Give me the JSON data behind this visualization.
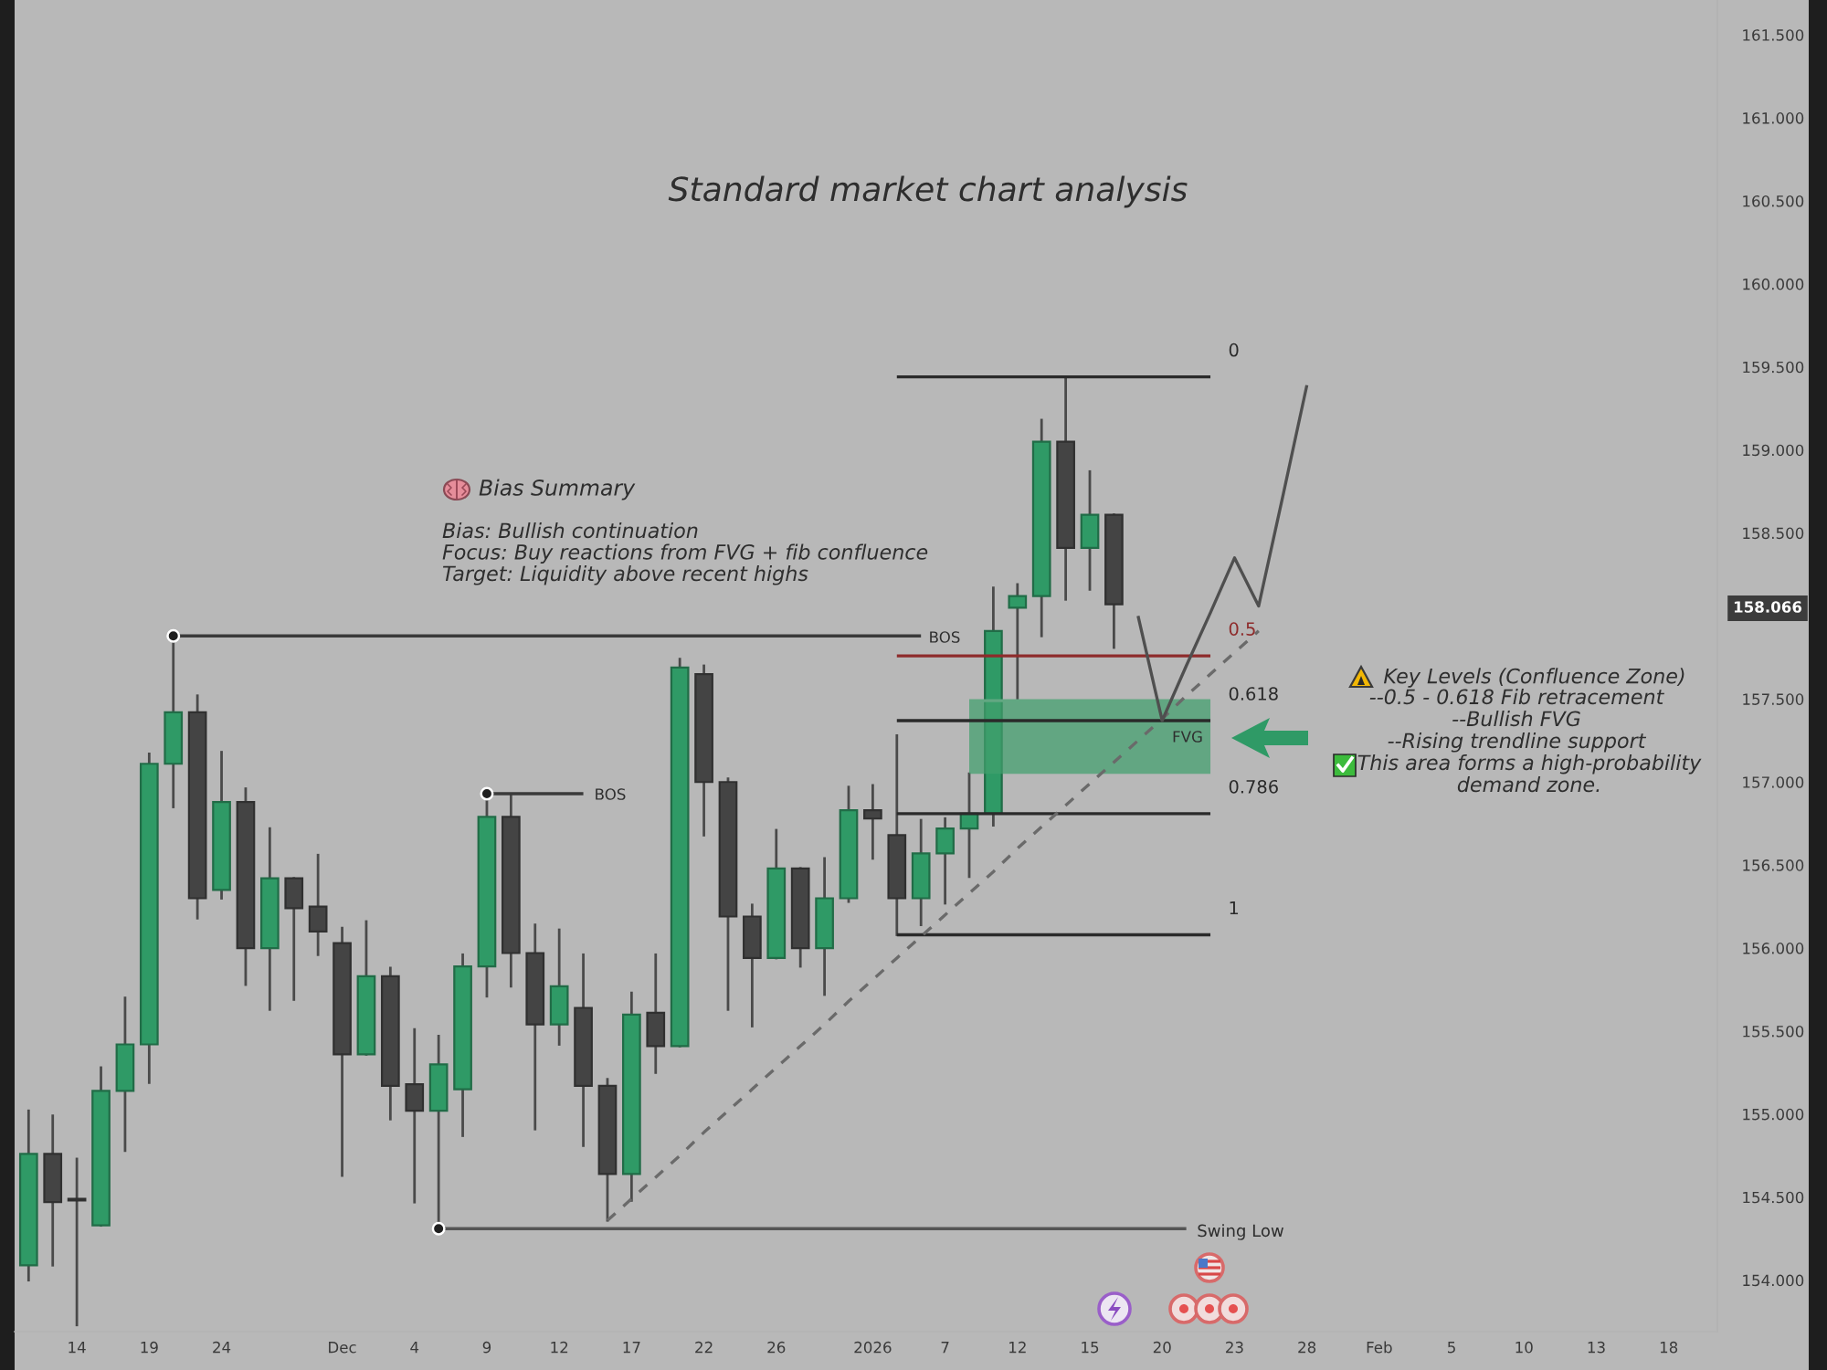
{
  "chart_data": {
    "type": "candlestick",
    "title": "Standard market chart analysis",
    "categories": [
      null,
      null,
      "14",
      null,
      null,
      "19",
      null,
      null,
      "24",
      null,
      null,
      null,
      null,
      "Dec",
      null,
      null,
      "4",
      null,
      null,
      "9",
      null,
      null,
      "12",
      null,
      null,
      "17",
      null,
      null,
      "22",
      null,
      null,
      "26",
      null,
      null,
      null,
      "2026",
      null,
      null,
      "7",
      null,
      null,
      "12",
      null,
      null,
      "15",
      null,
      null,
      "20",
      null,
      null,
      "23",
      null,
      null,
      "28",
      null,
      null,
      "Feb",
      null,
      null,
      "5",
      null,
      null,
      "10",
      null,
      null,
      "13",
      null,
      null,
      "18",
      null,
      null
    ],
    "ohlc": [
      [
        154.09,
        155.02,
        154.0,
        154.76
      ],
      [
        154.76,
        154.99,
        154.09,
        154.47
      ],
      [
        154.49,
        154.73,
        153.73,
        154.48
      ],
      [
        154.33,
        155.28,
        154.33,
        155.14
      ],
      [
        155.14,
        155.7,
        154.78,
        155.42
      ],
      [
        155.42,
        157.17,
        155.19,
        157.11
      ],
      [
        157.11,
        157.88,
        156.85,
        157.42
      ],
      [
        157.42,
        157.52,
        156.18,
        156.3
      ],
      [
        156.35,
        157.18,
        156.3,
        156.88
      ],
      [
        156.88,
        156.96,
        155.78,
        156.0
      ],
      [
        156.0,
        156.72,
        155.63,
        156.42
      ],
      [
        156.42,
        156.42,
        155.69,
        156.24
      ],
      [
        156.25,
        156.56,
        155.96,
        156.1
      ],
      [
        156.03,
        156.12,
        154.63,
        155.36
      ],
      [
        155.36,
        156.16,
        155.36,
        155.83
      ],
      [
        155.83,
        155.88,
        154.97,
        155.17
      ],
      [
        155.18,
        155.51,
        154.47,
        155.02
      ],
      [
        155.02,
        155.47,
        154.31,
        155.3
      ],
      [
        155.15,
        155.96,
        154.87,
        155.89
      ],
      [
        155.89,
        156.93,
        155.71,
        156.79
      ],
      [
        156.79,
        156.92,
        155.77,
        155.97
      ],
      [
        155.97,
        156.14,
        154.91,
        155.54
      ],
      [
        155.54,
        156.11,
        155.42,
        155.77
      ],
      [
        155.64,
        155.96,
        154.81,
        155.17
      ],
      [
        155.17,
        155.21,
        154.36,
        154.64
      ],
      [
        154.64,
        155.73,
        154.48,
        155.6
      ],
      [
        155.61,
        155.96,
        155.25,
        155.41
      ],
      [
        155.41,
        157.74,
        155.41,
        157.69
      ],
      [
        157.65,
        157.7,
        156.68,
        157.0
      ],
      [
        157.0,
        157.02,
        155.63,
        156.19
      ],
      [
        156.19,
        156.26,
        155.53,
        155.94
      ],
      [
        155.94,
        156.71,
        155.94,
        156.48
      ],
      [
        156.48,
        156.48,
        155.89,
        156.0
      ],
      [
        156.0,
        156.54,
        155.72,
        156.3
      ],
      [
        156.3,
        156.97,
        156.28,
        156.83
      ],
      [
        156.83,
        156.98,
        156.54,
        156.78
      ],
      [
        156.68,
        157.28,
        156.08,
        156.3
      ],
      [
        156.3,
        156.77,
        156.14,
        156.57
      ],
      [
        156.57,
        156.78,
        156.27,
        156.72
      ],
      [
        156.72,
        157.05,
        156.43,
        156.81
      ],
      [
        156.81,
        158.17,
        156.74,
        157.91
      ],
      [
        158.05,
        158.19,
        157.5,
        158.12
      ],
      [
        158.12,
        159.18,
        157.88,
        159.05
      ],
      [
        159.05,
        159.44,
        158.1,
        158.41
      ],
      [
        158.41,
        158.87,
        158.16,
        158.61
      ],
      [
        158.61,
        158.61,
        157.81,
        158.07
      ],
      null,
      null,
      null,
      null,
      null,
      null,
      null,
      null,
      null,
      null,
      null,
      null,
      null,
      null,
      null,
      null,
      null,
      null,
      null,
      null,
      null,
      null,
      null,
      null,
      null
    ],
    "colors": [
      "#2f9a66",
      "#444444",
      "#444444",
      "#2f9a66",
      "#2f9a66",
      "#2f9a66",
      "#2f9a66",
      "#444444",
      "#2f9a66",
      "#444444",
      "#2f9a66",
      "#444444",
      "#444444",
      "#444444",
      "#2f9a66",
      "#444444",
      "#444444",
      "#2f9a66",
      "#2f9a66",
      "#2f9a66",
      "#444444",
      "#444444",
      "#2f9a66",
      "#444444",
      "#444444",
      "#2f9a66",
      "#444444",
      "#2f9a66",
      "#444444",
      "#444444",
      "#444444",
      "#2f9a66",
      "#444444",
      "#2f9a66",
      "#2f9a66",
      "#444444",
      "#444444",
      "#2f9a66",
      "#2f9a66",
      "#2f9a66",
      "#2f9a66",
      "#2f9a66",
      "#2f9a66",
      "#444444",
      "#2f9a66",
      "#444444",
      null,
      null,
      null,
      null,
      null,
      null,
      null,
      null,
      null,
      null,
      null,
      null,
      null,
      null,
      null,
      null,
      null,
      null,
      null,
      null,
      null,
      null,
      null,
      null,
      null
    ],
    "series": [
      {
        "type": "line",
        "color": "#62a782",
        "values": [
          null,
          null,
          null,
          null,
          null,
          null,
          null,
          null,
          null,
          null,
          null,
          null,
          null,
          null,
          null,
          null,
          null,
          null,
          null,
          null,
          null,
          null,
          null,
          null,
          null,
          null,
          null,
          null,
          null,
          null,
          null,
          null,
          null,
          null,
          null,
          null,
          null,
          null,
          null,
          157.49,
          157.49,
          157.49,
          157.49,
          157.49,
          157.49,
          157.49,
          157.49,
          157.49,
          157.49,
          157.49,
          null,
          null,
          null,
          null,
          null,
          null,
          null,
          null,
          null,
          null,
          null,
          null,
          null,
          null,
          null,
          null,
          null,
          null,
          null,
          null,
          null
        ],
        "upper": [
          null,
          null,
          null,
          null,
          null,
          null,
          null,
          null,
          null,
          null,
          null,
          null,
          null,
          null,
          null,
          null,
          null,
          null,
          null,
          null,
          null,
          null,
          null,
          null,
          null,
          null,
          null,
          null,
          null,
          null,
          null,
          null,
          null,
          null,
          null,
          null,
          null,
          null,
          null,
          157.49,
          157.49,
          157.49,
          157.49,
          157.49,
          157.49,
          157.49,
          157.49,
          157.49,
          157.49,
          157.49,
          null,
          null,
          null,
          null,
          null,
          null,
          null,
          null,
          null,
          null,
          null,
          null,
          null,
          null,
          null,
          null,
          null,
          null,
          null,
          null,
          null
        ],
        "lower": [
          null,
          null,
          null,
          null,
          null,
          null,
          null,
          null,
          null,
          null,
          null,
          null,
          null,
          null,
          null,
          null,
          null,
          null,
          null,
          null,
          null,
          null,
          null,
          null,
          null,
          null,
          null,
          null,
          null,
          null,
          null,
          null,
          null,
          null,
          null,
          null,
          null,
          null,
          null,
          157.05,
          157.05,
          157.05,
          157.05,
          157.05,
          157.05,
          157.05,
          157.05,
          157.05,
          157.05,
          157.05,
          null,
          null,
          null,
          null,
          null,
          null,
          null,
          null,
          null,
          null,
          null,
          null,
          null,
          null,
          null,
          null,
          null,
          null,
          null,
          null,
          null
        ]
      },
      {
        "type": "line",
        "name": "0",
        "color": "#2a2a2a",
        "values": [
          null,
          null,
          null,
          null,
          null,
          null,
          null,
          null,
          null,
          null,
          null,
          null,
          null,
          null,
          null,
          null,
          null,
          null,
          null,
          null,
          null,
          null,
          null,
          null,
          null,
          null,
          null,
          null,
          null,
          null,
          null,
          null,
          null,
          null,
          null,
          null,
          159.44,
          159.44,
          159.44,
          159.44,
          159.44,
          159.44,
          159.44,
          159.44,
          159.44,
          159.44,
          159.44,
          159.44,
          159.44,
          159.44,
          null,
          null,
          null,
          null,
          null,
          null,
          null,
          null,
          null,
          null,
          null,
          null,
          null,
          null,
          null,
          null,
          null,
          null,
          null,
          null,
          null
        ]
      },
      {
        "type": "line",
        "name": "0.5",
        "color": "#8e2b2b",
        "values": [
          null,
          null,
          null,
          null,
          null,
          null,
          null,
          null,
          null,
          null,
          null,
          null,
          null,
          null,
          null,
          null,
          null,
          null,
          null,
          null,
          null,
          null,
          null,
          null,
          null,
          null,
          null,
          null,
          null,
          null,
          null,
          null,
          null,
          null,
          null,
          null,
          157.76,
          157.76,
          157.76,
          157.76,
          157.76,
          157.76,
          157.76,
          157.76,
          157.76,
          157.76,
          157.76,
          157.76,
          157.76,
          157.76,
          null,
          null,
          null,
          null,
          null,
          null,
          null,
          null,
          null,
          null,
          null,
          null,
          null,
          null,
          null,
          null,
          null,
          null,
          null,
          null,
          null
        ]
      },
      {
        "type": "line",
        "name": "0.618",
        "color": "#2a2a2a",
        "values": [
          null,
          null,
          null,
          null,
          null,
          null,
          null,
          null,
          null,
          null,
          null,
          null,
          null,
          null,
          null,
          null,
          null,
          null,
          null,
          null,
          null,
          null,
          null,
          null,
          null,
          null,
          null,
          null,
          null,
          null,
          null,
          null,
          null,
          null,
          null,
          null,
          157.37,
          157.37,
          157.37,
          157.37,
          157.37,
          157.37,
          157.37,
          157.37,
          157.37,
          157.37,
          157.37,
          157.37,
          157.37,
          157.37,
          null,
          null,
          null,
          null,
          null,
          null,
          null,
          null,
          null,
          null,
          null,
          null,
          null,
          null,
          null,
          null,
          null,
          null,
          null,
          null,
          null
        ]
      },
      {
        "type": "line",
        "name": "0.786",
        "color": "#2a2a2a",
        "values": [
          null,
          null,
          null,
          null,
          null,
          null,
          null,
          null,
          null,
          null,
          null,
          null,
          null,
          null,
          null,
          null,
          null,
          null,
          null,
          null,
          null,
          null,
          null,
          null,
          null,
          null,
          null,
          null,
          null,
          null,
          null,
          null,
          null,
          null,
          null,
          null,
          156.81,
          156.81,
          156.81,
          156.81,
          156.81,
          156.81,
          156.81,
          156.81,
          156.81,
          156.81,
          156.81,
          156.81,
          156.81,
          156.81,
          null,
          null,
          null,
          null,
          null,
          null,
          null,
          null,
          null,
          null,
          null,
          null,
          null,
          null,
          null,
          null,
          null,
          null,
          null,
          null,
          null
        ]
      },
      {
        "type": "line",
        "name": "1",
        "color": "#2a2a2a",
        "values": [
          null,
          null,
          null,
          null,
          null,
          null,
          null,
          null,
          null,
          null,
          null,
          null,
          null,
          null,
          null,
          null,
          null,
          null,
          null,
          null,
          null,
          null,
          null,
          null,
          null,
          null,
          null,
          null,
          null,
          null,
          null,
          null,
          null,
          null,
          null,
          null,
          156.08,
          156.08,
          156.08,
          156.08,
          156.08,
          156.08,
          156.08,
          156.08,
          156.08,
          156.08,
          156.08,
          156.08,
          156.08,
          156.08,
          null,
          null,
          null,
          null,
          null,
          null,
          null,
          null,
          null,
          null,
          null,
          null,
          null,
          null,
          null,
          null,
          null,
          null,
          null,
          null,
          null
        ]
      },
      {
        "type": "line",
        "color": "#3a3a3a",
        "values": [
          null,
          null,
          null,
          null,
          null,
          null,
          157.88,
          157.88,
          157.88,
          157.88,
          157.88,
          157.88,
          157.88,
          157.88,
          157.88,
          157.88,
          157.88,
          157.88,
          157.88,
          157.88,
          157.88,
          157.88,
          157.88,
          157.88,
          157.88,
          157.88,
          157.88,
          157.88,
          157.88,
          157.88,
          157.88,
          157.88,
          157.88,
          157.88,
          157.88,
          157.88,
          157.88,
          157.88,
          null,
          null,
          null,
          null,
          null,
          null,
          null,
          null,
          null,
          null,
          null,
          null,
          null,
          null,
          null,
          null,
          null,
          null,
          null,
          null,
          null,
          null,
          null,
          null,
          null,
          null,
          null,
          null,
          null,
          null,
          null,
          null,
          null
        ]
      },
      {
        "type": "line",
        "color": "#3a3a3a",
        "values": [
          null,
          null,
          null,
          null,
          null,
          null,
          null,
          null,
          null,
          null,
          null,
          null,
          null,
          null,
          null,
          null,
          null,
          null,
          null,
          156.93,
          156.93,
          156.93,
          156.93,
          156.93,
          null,
          null,
          null,
          null,
          null,
          null,
          null,
          null,
          null,
          null,
          null,
          null,
          null,
          null,
          null,
          null,
          null,
          null,
          null,
          null,
          null,
          null,
          null,
          null,
          null,
          null,
          null,
          null,
          null,
          null,
          null,
          null,
          null,
          null,
          null,
          null,
          null,
          null,
          null,
          null,
          null,
          null,
          null,
          null,
          null,
          null,
          null
        ]
      },
      {
        "type": "line",
        "color": "#555555",
        "values": [
          null,
          null,
          null,
          null,
          null,
          null,
          null,
          null,
          null,
          null,
          null,
          null,
          null,
          null,
          null,
          null,
          null,
          154.31,
          154.31,
          154.31,
          154.31,
          154.31,
          154.31,
          154.31,
          154.31,
          154.31,
          154.31,
          154.31,
          154.31,
          154.31,
          154.31,
          154.31,
          154.31,
          154.31,
          154.31,
          154.31,
          154.31,
          154.31,
          154.31,
          154.31,
          154.31,
          154.31,
          154.31,
          154.31,
          154.31,
          154.31,
          154.31,
          154.31,
          154.31,
          null,
          null,
          null,
          null,
          null,
          null,
          null,
          null,
          null,
          null,
          null,
          null,
          null,
          null,
          null,
          null,
          null,
          null,
          null,
          null,
          null,
          null
        ]
      },
      {
        "type": "scatter",
        "marker": "circle",
        "color": "#1f1f1f",
        "values": [
          null,
          null,
          null,
          null,
          null,
          null,
          157.88,
          null,
          null,
          null,
          null,
          null,
          null,
          null,
          null,
          null,
          null,
          154.31,
          null,
          156.93,
          null,
          null,
          null,
          null,
          null,
          null,
          null,
          null,
          null,
          null,
          null,
          null,
          null,
          null,
          null,
          null,
          null,
          null,
          null,
          null,
          null,
          null,
          null,
          null,
          null,
          null,
          null,
          null,
          null,
          null,
          null,
          null,
          null,
          null,
          null,
          null,
          null,
          null,
          null,
          null,
          null,
          null,
          null,
          null,
          null,
          null,
          null,
          null,
          null,
          null,
          null
        ]
      },
      {
        "type": "line",
        "line_style": "dashed",
        "color": "#6a6a6a",
        "values": [
          null,
          null,
          null,
          null,
          null,
          null,
          null,
          null,
          null,
          null,
          null,
          null,
          null,
          null,
          null,
          null,
          null,
          null,
          null,
          null,
          null,
          null,
          null,
          null,
          154.36,
          154.49,
          154.62,
          154.75,
          154.89,
          155.02,
          155.15,
          155.28,
          155.41,
          155.54,
          155.68,
          155.81,
          155.94,
          156.07,
          156.2,
          156.33,
          156.46,
          156.6,
          156.73,
          156.86,
          156.99,
          157.12,
          157.25,
          157.38,
          157.52,
          157.65,
          157.78,
          157.91,
          null,
          null,
          null,
          null,
          null,
          null,
          null,
          null,
          null,
          null,
          null,
          null,
          null,
          null,
          null,
          null,
          null,
          null,
          null
        ]
      },
      {
        "type": "line",
        "color": "#4f4f4f",
        "values": [
          null,
          null,
          null,
          null,
          null,
          null,
          null,
          null,
          null,
          null,
          null,
          null,
          null,
          null,
          null,
          null,
          null,
          null,
          null,
          null,
          null,
          null,
          null,
          null,
          null,
          null,
          null,
          null,
          null,
          null,
          null,
          null,
          null,
          null,
          null,
          null,
          null,
          null,
          null,
          null,
          null,
          null,
          null,
          null,
          null,
          null,
          158.0,
          157.37,
          157.7,
          158.02,
          158.35,
          158.06,
          158.72,
          159.39,
          null,
          null,
          null,
          null,
          null,
          null,
          null,
          null,
          null,
          null,
          null,
          null,
          null,
          null,
          null,
          null,
          null
        ]
      }
    ],
    "annotations": [
      "Bias Summary",
      "Bias: Bullish continuation\nFocus: Buy reactions from FVG + fib confluence\nTarget: Liquidity above recent highs",
      "Key Levels (Confluence Zone)",
      "--0.5 - 0.618 Fib retracement\n--Bullish FVG\n--Rising trendline support",
      "This area forms a high-probability\ndemand zone.",
      "BOS",
      "BOS",
      "Swing Low",
      "FVG",
      "158.066"
    ],
    "ylim": [
      153.69,
      161.71
    ],
    "yticks": [
      {
        "value": 154,
        "label": "154.000"
      },
      {
        "value": 154.5,
        "label": "154.500"
      },
      {
        "value": 155,
        "label": "155.000"
      },
      {
        "value": 155.5,
        "label": "155.500"
      },
      {
        "value": 156,
        "label": "156.000"
      },
      {
        "value": 156.5,
        "label": "156.500"
      },
      {
        "value": 157,
        "label": "157.000"
      },
      {
        "value": 157.5,
        "label": "157.500"
      },
      {
        "value": 158.5,
        "label": "158.500"
      },
      {
        "value": 159,
        "label": "159.000"
      },
      {
        "value": 159.5,
        "label": "159.500"
      },
      {
        "value": 160,
        "label": "160.000"
      },
      {
        "value": 160.5,
        "label": "160.500"
      },
      {
        "value": 161,
        "label": "161.000"
      },
      {
        "value": 161.5,
        "label": "161.500"
      }
    ]
  }
}
